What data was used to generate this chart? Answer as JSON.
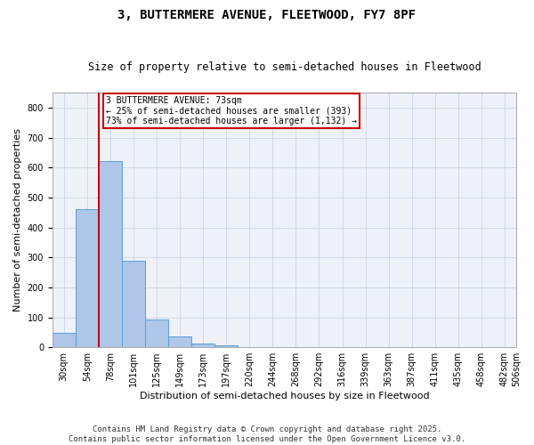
{
  "title1": "3, BUTTERMERE AVENUE, FLEETWOOD, FY7 8PF",
  "title2": "Size of property relative to semi-detached houses in Fleetwood",
  "xlabel": "Distribution of semi-detached houses by size in Fleetwood",
  "ylabel": "Number of semi-detached properties",
  "bar_values": [
    48,
    460,
    620,
    290,
    93,
    37,
    12,
    6,
    0,
    0,
    0,
    0,
    0,
    0,
    0,
    0,
    0,
    0,
    0,
    0
  ],
  "bin_labels": [
    "30sqm",
    "54sqm",
    "78sqm",
    "101sqm",
    "125sqm",
    "149sqm",
    "173sqm",
    "197sqm",
    "220sqm",
    "244sqm",
    "268sqm",
    "292sqm",
    "316sqm",
    "339sqm",
    "363sqm",
    "387sqm",
    "411sqm",
    "435sqm",
    "458sqm",
    "482sqm",
    "506sqm"
  ],
  "bar_color": "#aec6e8",
  "bar_edge_color": "#5a9fd4",
  "grid_color": "#d0d8e8",
  "bg_color": "#eef2f8",
  "vline_color": "#cc0000",
  "annotation_text": "3 BUTTERMERE AVENUE: 73sqm\n← 25% of semi-detached houses are smaller (393)\n73% of semi-detached houses are larger (1,132) →",
  "annotation_box_color": "#cc0000",
  "ylim": [
    0,
    850
  ],
  "yticks": [
    0,
    100,
    200,
    300,
    400,
    500,
    600,
    700,
    800
  ],
  "footer": "Contains HM Land Registry data © Crown copyright and database right 2025.\nContains public sector information licensed under the Open Government Licence v3.0.",
  "title1_fontsize": 10,
  "title2_fontsize": 8.5,
  "axis_fontsize": 8,
  "tick_fontsize": 7,
  "footer_fontsize": 6.5
}
